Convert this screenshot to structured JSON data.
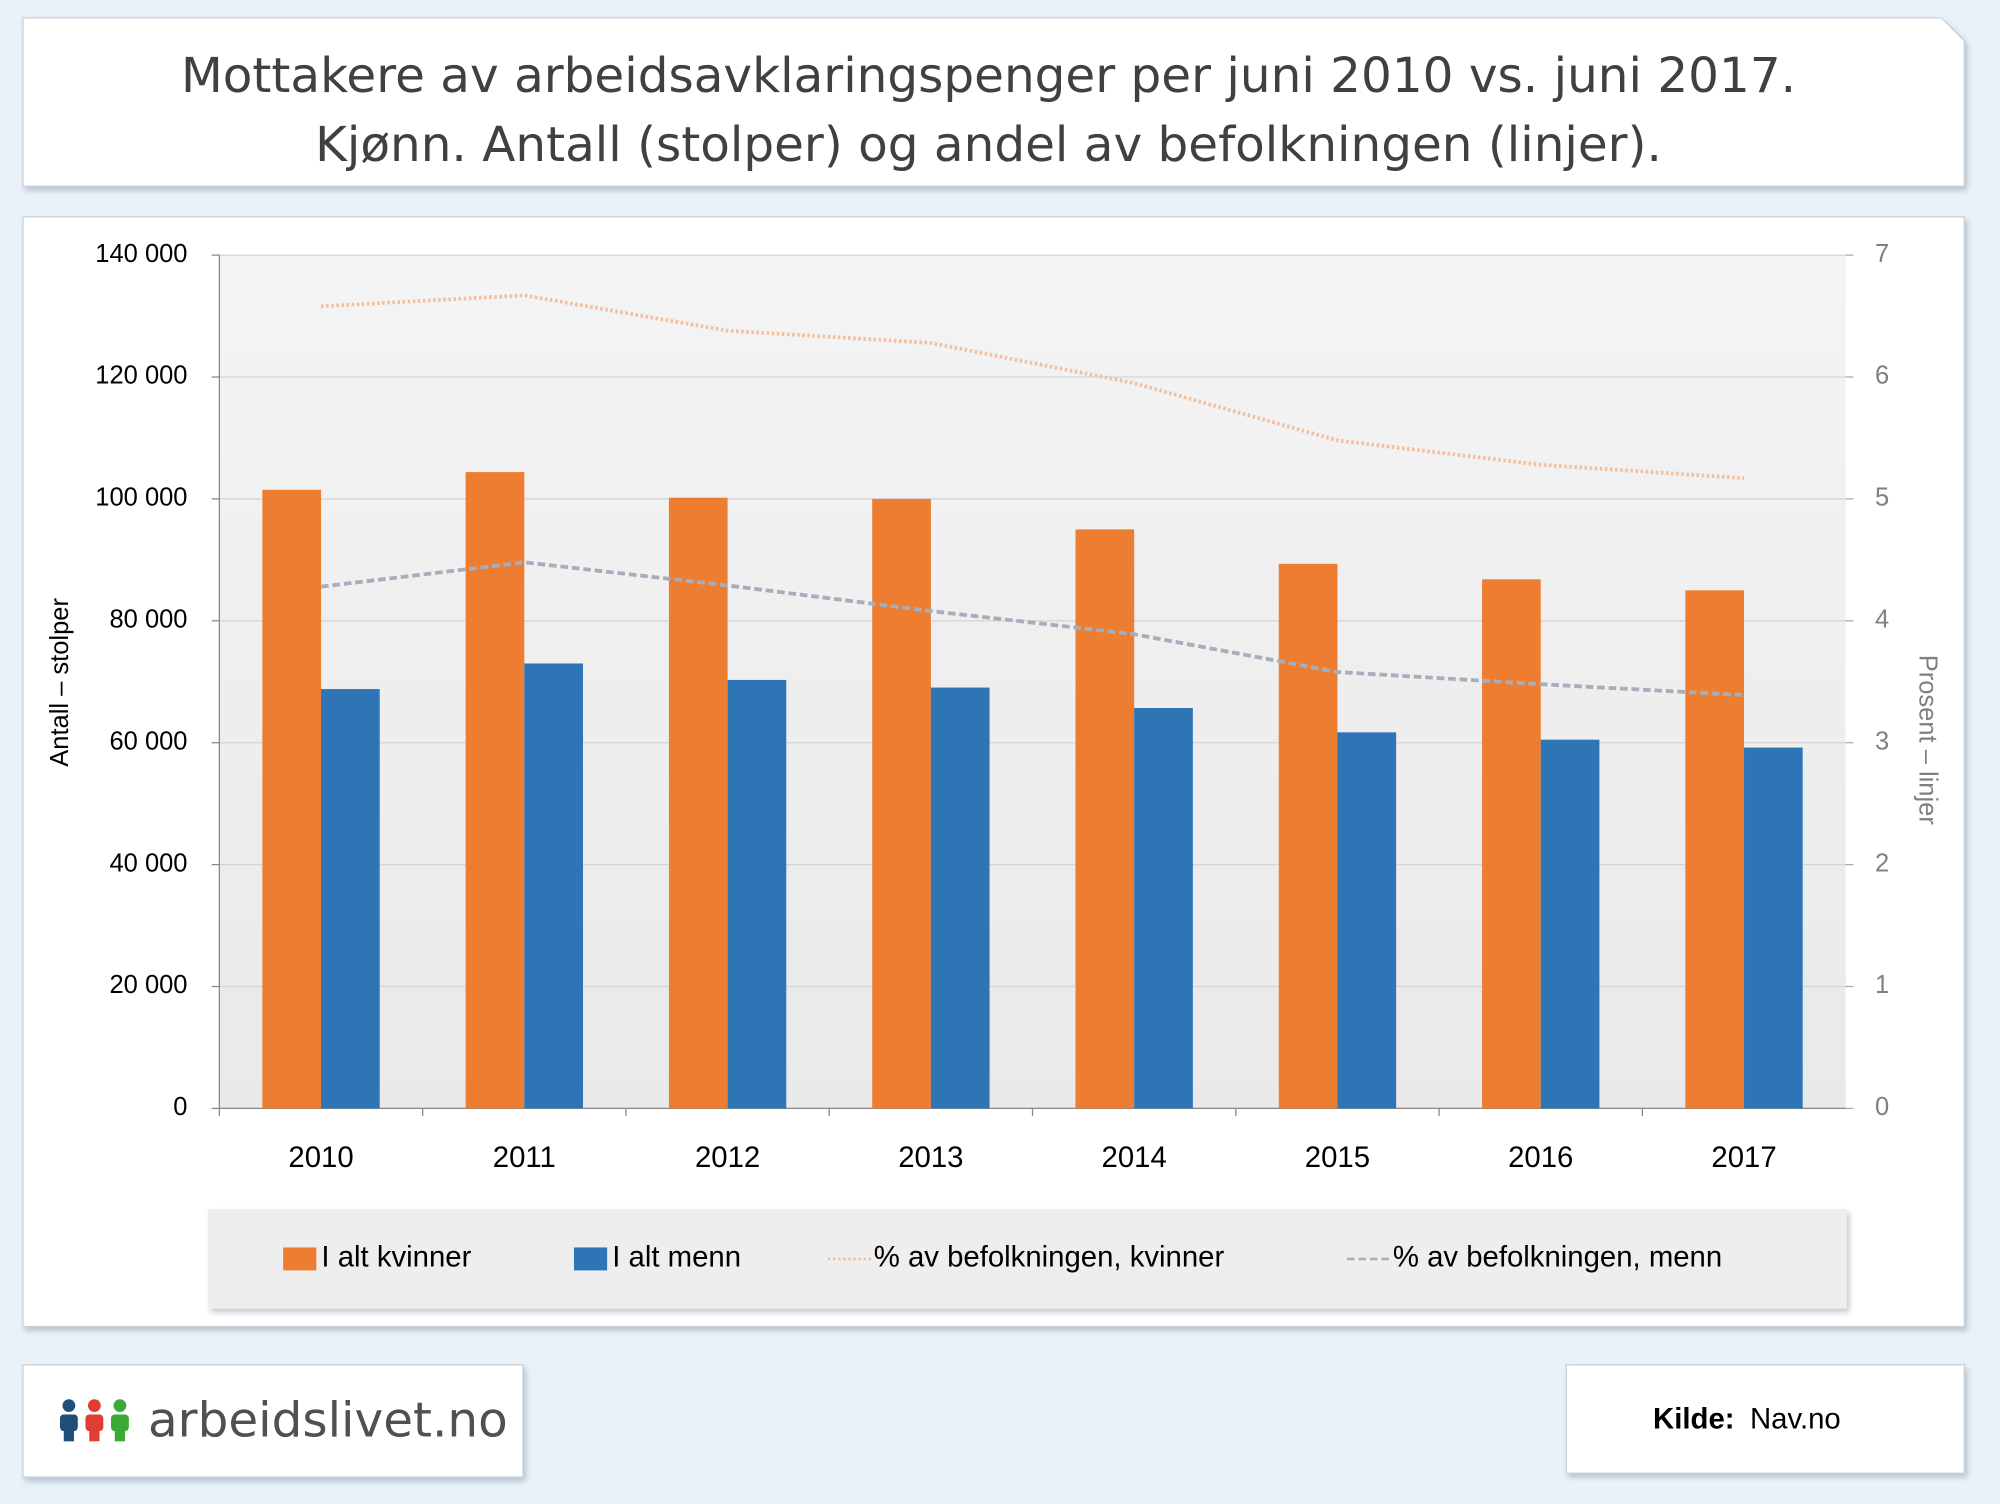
{
  "chart_data": {
    "type": "bar",
    "title": [
      "Mottakere av arbeidsavklaringspenger per juni 2010 vs. juni 2017.",
      "Kjønn. Antall (stolper) og andel av befolkningen (linjer)."
    ],
    "y_label": "Antall – stolper",
    "y2_label": "Prosent – linjer",
    "categories": [
      "2010",
      "2011",
      "2012",
      "2013",
      "2014",
      "2015",
      "2016",
      "2017"
    ],
    "series": [
      {
        "name": "I alt kvinner",
        "color": "#ed7d31",
        "values": [
          101500,
          104400,
          100200,
          100000,
          95000,
          89350,
          86800,
          85000
        ]
      },
      {
        "name": "I alt menn",
        "color": "#2e75b6",
        "values": [
          68800,
          73000,
          70300,
          69050,
          65700,
          61700,
          60500,
          59200
        ]
      },
      {
        "name": "% av befolkningen, kvinner",
        "type": "line",
        "axis": "y2",
        "color": "#f4bf9a",
        "values": [
          6.58,
          6.67,
          6.38,
          6.28,
          5.95,
          5.48,
          5.28,
          5.17
        ]
      },
      {
        "name": "% av befolkningen, menn",
        "type": "line",
        "axis": "y2",
        "color": "#a6aebb",
        "values": [
          4.28,
          4.48,
          4.29,
          4.08,
          3.89,
          3.58,
          3.48,
          3.39
        ]
      }
    ],
    "ylim": [
      0,
      140000
    ],
    "yticks": [
      0,
      {
        "value": 20000,
        "label": "20 000"
      },
      {
        "value": 40000,
        "label": "40 000"
      },
      {
        "value": 60000,
        "label": "60 000"
      },
      {
        "value": 80000,
        "label": "80 000"
      },
      {
        "value": 100000,
        "label": "100 000"
      },
      {
        "value": 120000,
        "label": "120 000"
      },
      {
        "value": 140000,
        "label": "140 000"
      }
    ],
    "y2lim": [
      0,
      7
    ],
    "y2ticks": [
      0,
      1,
      2,
      3,
      4,
      5,
      6,
      7
    ],
    "grid": true,
    "legend": "bottom"
  },
  "logo": "arbeidslivet.no",
  "source_label": "Kilde:",
  "source": "Nav.no"
}
